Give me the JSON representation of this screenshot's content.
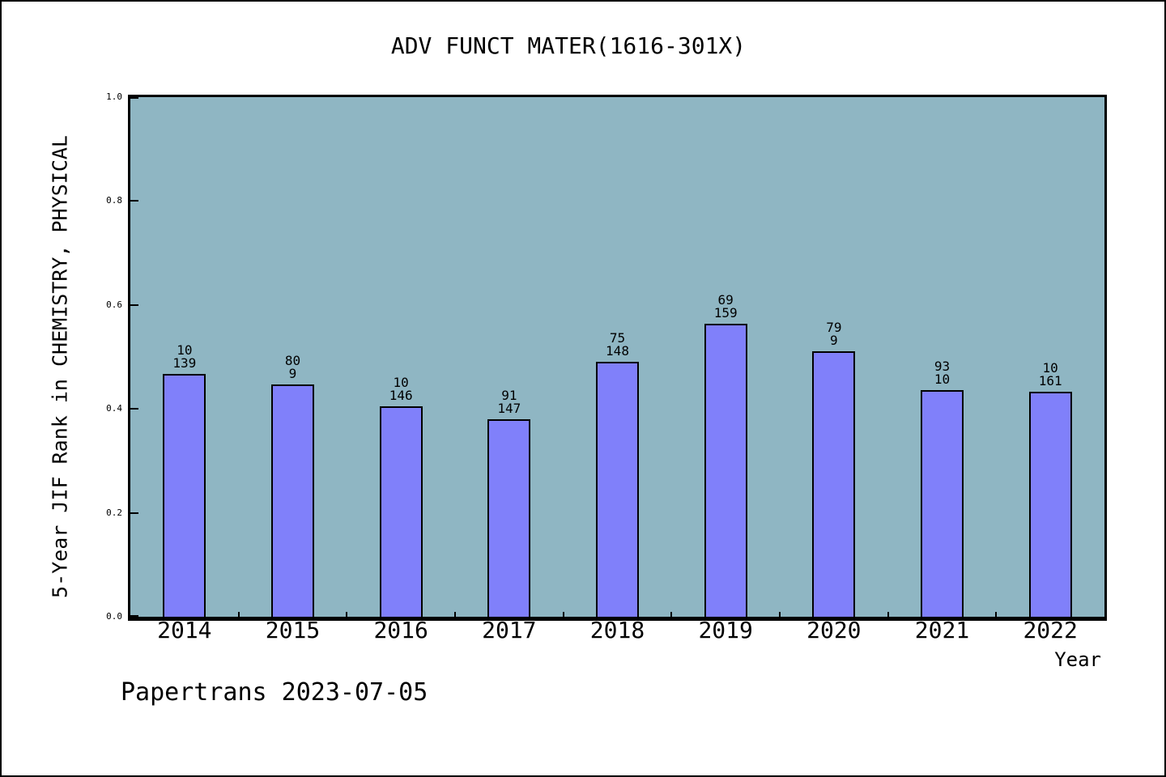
{
  "chart_data": {
    "type": "bar",
    "title": "ADV FUNCT MATER(1616-301X)",
    "xlabel": "Year",
    "ylabel": "5-Year JIF Rank in CHEMISTRY, PHYSICAL",
    "categories": [
      "2014",
      "2015",
      "2016",
      "2017",
      "2018",
      "2019",
      "2020",
      "2021",
      "2022"
    ],
    "values": [
      0.467,
      0.447,
      0.405,
      0.38,
      0.491,
      0.564,
      0.511,
      0.436,
      0.433
    ],
    "bar_labels": [
      [
        "10",
        "139"
      ],
      [
        "80",
        "9"
      ],
      [
        "10",
        "146"
      ],
      [
        "91",
        "147"
      ],
      [
        "75",
        "148"
      ],
      [
        "69",
        "159"
      ],
      [
        "79",
        "9"
      ],
      [
        "93",
        "10"
      ],
      [
        "10",
        "161"
      ]
    ],
    "ylim": [
      0.0,
      1.0
    ],
    "yticks": [
      "0.0",
      "0.2",
      "0.4",
      "0.6",
      "0.8",
      "1.0"
    ],
    "grid": false,
    "legend_position": "none",
    "colors": {
      "plot_bg": "#8FB6C3",
      "bar_fill": "#8080FA",
      "bar_edge": "#000000",
      "frame": "#000000",
      "text": "#000000",
      "page_bg": "#FFFFFF"
    }
  },
  "footer": {
    "text": "Papertrans 2023-07-05"
  }
}
